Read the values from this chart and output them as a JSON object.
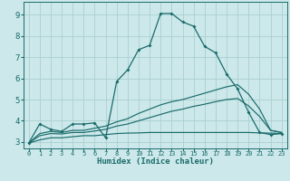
{
  "xlabel": "Humidex (Indice chaleur)",
  "xlim": [
    -0.5,
    23.5
  ],
  "ylim": [
    2.7,
    9.6
  ],
  "xticks": [
    0,
    1,
    2,
    3,
    4,
    5,
    6,
    7,
    8,
    9,
    10,
    11,
    12,
    13,
    14,
    15,
    16,
    17,
    18,
    19,
    20,
    21,
    22,
    23
  ],
  "yticks": [
    3,
    4,
    5,
    6,
    7,
    8,
    9
  ],
  "bg_color": "#cce8ea",
  "grid_color": "#aacfcf",
  "line_color": "#1a6b6b",
  "curves": [
    {
      "x": [
        0,
        1,
        2,
        3,
        4,
        5,
        6,
        7,
        8,
        9,
        10,
        11,
        12,
        13,
        14,
        15,
        16,
        17,
        18,
        19,
        20,
        21,
        22,
        23
      ],
      "y": [
        2.95,
        3.85,
        3.6,
        3.5,
        3.85,
        3.85,
        3.9,
        3.2,
        5.85,
        6.4,
        7.35,
        7.55,
        9.05,
        9.05,
        8.65,
        8.45,
        7.5,
        7.2,
        6.2,
        5.5,
        4.4,
        3.45,
        3.35,
        3.4
      ],
      "marker": true
    },
    {
      "x": [
        0,
        1,
        2,
        3,
        4,
        5,
        6,
        7,
        8,
        9,
        10,
        11,
        12,
        13,
        14,
        15,
        16,
        17,
        18,
        19,
        20,
        21,
        22,
        23
      ],
      "y": [
        2.95,
        3.4,
        3.5,
        3.45,
        3.55,
        3.55,
        3.65,
        3.75,
        3.95,
        4.1,
        4.35,
        4.55,
        4.75,
        4.9,
        5.0,
        5.15,
        5.3,
        5.45,
        5.6,
        5.7,
        5.25,
        4.55,
        3.55,
        3.45
      ],
      "marker": false
    },
    {
      "x": [
        0,
        1,
        2,
        3,
        4,
        5,
        6,
        7,
        8,
        9,
        10,
        11,
        12,
        13,
        14,
        15,
        16,
        17,
        18,
        19,
        20,
        21,
        22,
        23
      ],
      "y": [
        2.95,
        3.3,
        3.4,
        3.38,
        3.45,
        3.45,
        3.52,
        3.6,
        3.75,
        3.85,
        4.0,
        4.15,
        4.3,
        4.45,
        4.55,
        4.68,
        4.78,
        4.9,
        5.0,
        5.05,
        4.7,
        4.2,
        3.55,
        3.45
      ],
      "marker": false
    },
    {
      "x": [
        0,
        1,
        2,
        3,
        4,
        5,
        6,
        7,
        8,
        9,
        10,
        11,
        12,
        13,
        14,
        15,
        16,
        17,
        18,
        19,
        20,
        21,
        22,
        23
      ],
      "y": [
        2.95,
        3.1,
        3.2,
        3.2,
        3.25,
        3.3,
        3.3,
        3.35,
        3.4,
        3.42,
        3.43,
        3.45,
        3.45,
        3.45,
        3.45,
        3.45,
        3.45,
        3.45,
        3.45,
        3.45,
        3.45,
        3.43,
        3.42,
        3.4
      ],
      "marker": false
    }
  ]
}
